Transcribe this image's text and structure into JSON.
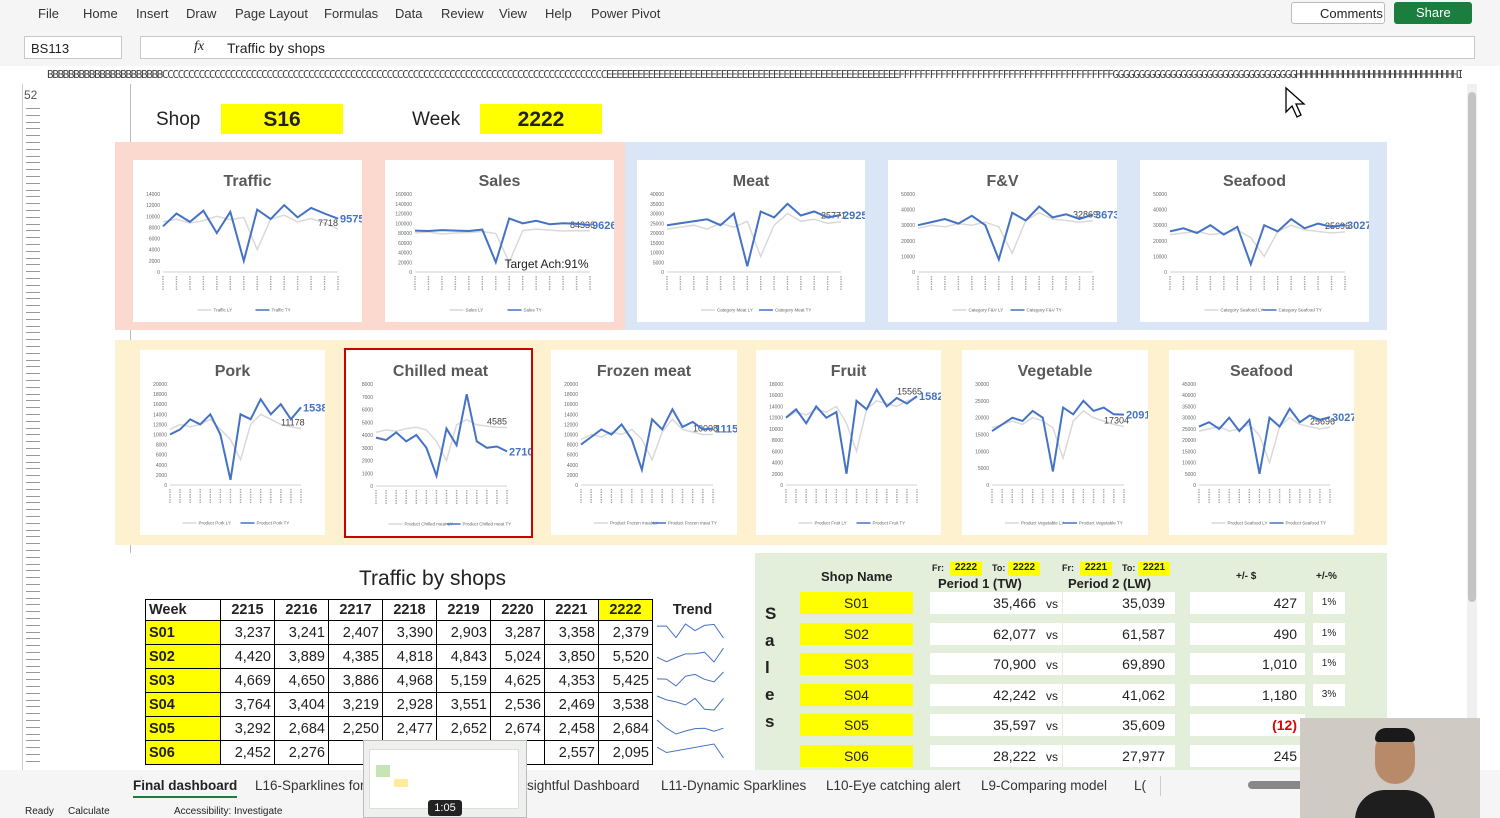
{
  "ribbon": {
    "menu": [
      "File",
      "Home",
      "Insert",
      "Draw",
      "Page Layout",
      "Formulas",
      "Data",
      "Review",
      "View",
      "Help",
      "Power Pivot"
    ],
    "comments": "Comments",
    "share": "Share"
  },
  "formula_bar": {
    "name_box": "BS113",
    "fx": "fx",
    "formula": "Traffic by shops"
  },
  "column_letters": "BBBBBBBBBBBBBBBBBBBBBBCCCCCCCCCCCCCCCCCCCCCCCCCCCCCCCCCCCCCCCCCCCCCCCCCCCCCCCCCCCCCCCCCCCCCCCCCCCCCCCCCCCCCEEEEEEEEEEEEEEEEEEEEEEEEEEEEEEEEEEEEEEEEEEEEEEEEEEEEEEEEFFFFFFFFFFFFFFFFFFFFFFFFFFFFFFFFFFFFFFFFFGGGGGGGGGGGGGGGGGGGGGGGGGGGGGGGGGGGHHHHHHHHHHHHHHHHHHHHHHHHHHHHHHHIIIIIIIIIIIIIIIIIII",
  "row_number": "52",
  "selectors": {
    "shop_label": "Shop",
    "shop": "S16",
    "week_label": "Week",
    "week": "2222"
  },
  "chart_data": [
    {
      "type": "line",
      "title": "Traffic",
      "ylim": [
        0,
        14000
      ],
      "yticks": [
        0,
        2000,
        4000,
        6000,
        8000,
        10000,
        12000,
        14000
      ],
      "series": [
        {
          "name": "Traffic LY",
          "color": "#d9d9d9",
          "values": [
            9000,
            9500,
            8800,
            9200,
            10000,
            9400,
            9800,
            4000,
            9500,
            10200,
            9000,
            9600,
            8800,
            7718
          ]
        },
        {
          "name": "Traffic TY",
          "color": "#4472c4",
          "values": [
            8200,
            10500,
            9000,
            11000,
            7000,
            10800,
            2000,
            11200,
            9500,
            12000,
            9800,
            11500,
            10500,
            9575
          ]
        }
      ]
    },
    {
      "type": "line",
      "title": "Sales",
      "annotation": "Target Ach:91%",
      "ylim": [
        0,
        160000
      ],
      "yticks": [
        0,
        20000,
        40000,
        60000,
        80000,
        100000,
        120000,
        140000,
        160000
      ],
      "series": [
        {
          "name": "Sales LY",
          "color": "#d9d9d9",
          "values": [
            80000,
            82000,
            78000,
            80000,
            81000,
            83000,
            79000,
            20000,
            85000,
            88000,
            86000,
            84000,
            85000,
            84336
          ]
        },
        {
          "name": "Sales TY",
          "color": "#4472c4",
          "values": [
            85000,
            84000,
            86000,
            85000,
            84000,
            87000,
            20000,
            110000,
            100000,
            105000,
            98000,
            100000,
            99000,
            96260
          ]
        }
      ]
    },
    {
      "type": "line",
      "title": "Meat",
      "ylim": [
        0,
        40000
      ],
      "yticks": [
        0,
        5000,
        10000,
        15000,
        20000,
        25000,
        30000,
        35000,
        40000
      ],
      "series": [
        {
          "name": "Category Meat LY",
          "color": "#d9d9d9",
          "values": [
            22000,
            23000,
            24000,
            22000,
            25000,
            23000,
            26000,
            8000,
            24000,
            30000,
            26000,
            27000,
            25000,
            25771
          ]
        },
        {
          "name": "Category Meat TY",
          "color": "#4472c4",
          "values": [
            24000,
            25000,
            26000,
            27000,
            24000,
            30000,
            3000,
            31000,
            28000,
            35000,
            29000,
            31000,
            28000,
            29251
          ]
        }
      ]
    },
    {
      "type": "line",
      "title": "F&V",
      "ylim": [
        0,
        50000
      ],
      "yticks": [
        0,
        10000,
        20000,
        30000,
        40000,
        50000
      ],
      "series": [
        {
          "name": "Category F&V LY",
          "color": "#d9d9d9",
          "values": [
            28000,
            30000,
            29000,
            31000,
            30000,
            32000,
            29000,
            12000,
            33000,
            38000,
            34000,
            33000,
            32000,
            32869
          ]
        },
        {
          "name": "Category F&V TY",
          "color": "#4472c4",
          "values": [
            30000,
            32000,
            34000,
            31000,
            36000,
            30000,
            8000,
            38000,
            33000,
            42000,
            35000,
            37000,
            34000,
            36735
          ]
        }
      ]
    },
    {
      "type": "line",
      "title": "Seafood",
      "ylim": [
        0,
        50000
      ],
      "yticks": [
        0,
        10000,
        20000,
        30000,
        40000,
        50000
      ],
      "series": [
        {
          "name": "Category Seafood LY",
          "color": "#d9d9d9",
          "values": [
            24000,
            25000,
            26000,
            24000,
            25000,
            27000,
            22000,
            10000,
            26000,
            30000,
            27000,
            26000,
            25000,
            25696
          ]
        },
        {
          "name": "Category Seafood TY",
          "color": "#4472c4",
          "values": [
            26000,
            28000,
            25000,
            30000,
            24000,
            29000,
            5000,
            30000,
            26000,
            34000,
            28000,
            31000,
            29000,
            30274
          ]
        }
      ]
    },
    {
      "type": "line",
      "title": "Pork",
      "ylim": [
        0,
        20000
      ],
      "yticks": [
        0,
        2000,
        4000,
        6000,
        8000,
        10000,
        12000,
        14000,
        16000,
        18000,
        20000
      ],
      "series": [
        {
          "name": "Product Pork LY",
          "color": "#d9d9d9",
          "values": [
            11000,
            12000,
            11500,
            12000,
            13000,
            11000,
            9000,
            5000,
            12000,
            14000,
            13000,
            12000,
            11500,
            11178
          ]
        },
        {
          "name": "Product Pork TY",
          "color": "#4472c4",
          "values": [
            10000,
            11000,
            13000,
            12000,
            14000,
            10000,
            1000,
            14000,
            13000,
            17000,
            14000,
            16000,
            13000,
            15382
          ]
        }
      ]
    },
    {
      "type": "line",
      "title": "Chilled meat",
      "ylim": [
        0,
        8000
      ],
      "yticks": [
        0,
        1000,
        2000,
        3000,
        4000,
        5000,
        6000,
        7000,
        8000
      ],
      "series": [
        {
          "name": "Product Chilled meat LY",
          "color": "#d9d9d9",
          "values": [
            4200,
            4400,
            4300,
            4500,
            4600,
            4400,
            3500,
            2000,
            4800,
            5200,
            4800,
            4700,
            4600,
            4585
          ]
        },
        {
          "name": "Product Chilled meat TY",
          "color": "#4472c4",
          "values": [
            3800,
            3600,
            4200,
            3500,
            4000,
            3000,
            800,
            4500,
            3200,
            7200,
            3500,
            3000,
            3100,
            2710
          ]
        }
      ]
    },
    {
      "type": "line",
      "title": "Frozen meat",
      "ylim": [
        0,
        20000
      ],
      "yticks": [
        0,
        2000,
        4000,
        6000,
        8000,
        10000,
        12000,
        14000,
        16000,
        18000,
        20000
      ],
      "series": [
        {
          "name": "Product Frozen meat LY",
          "color": "#d9d9d9",
          "values": [
            9000,
            10000,
            9500,
            10500,
            10000,
            11000,
            9000,
            5000,
            10500,
            13000,
            11000,
            10500,
            10000,
            10008
          ]
        },
        {
          "name": "Product Frozen meat TY",
          "color": "#4472c4",
          "values": [
            8000,
            9500,
            11000,
            10000,
            12000,
            9000,
            3000,
            13000,
            11000,
            15000,
            11500,
            12500,
            11000,
            11159
          ]
        }
      ]
    },
    {
      "type": "line",
      "title": "Fruit",
      "ylim": [
        0,
        18000
      ],
      "yticks": [
        0,
        2000,
        4000,
        6000,
        8000,
        10000,
        12000,
        14000,
        16000,
        18000
      ],
      "series": [
        {
          "name": "Product Fruit LY",
          "color": "#d9d9d9",
          "values": [
            12000,
            13000,
            12500,
            13500,
            13000,
            14000,
            11000,
            6000,
            13500,
            15000,
            14500,
            14000,
            15000,
            15565
          ]
        },
        {
          "name": "Product Fruit TY",
          "color": "#4472c4",
          "values": [
            12000,
            13500,
            11000,
            14000,
            12000,
            13000,
            2000,
            15000,
            13500,
            17000,
            14000,
            15500,
            14500,
            15822
          ]
        }
      ]
    },
    {
      "type": "line",
      "title": "Vegetable",
      "ylim": [
        0,
        30000
      ],
      "yticks": [
        0,
        5000,
        10000,
        15000,
        20000,
        25000,
        30000
      ],
      "series": [
        {
          "name": "Product Vegetable LY",
          "color": "#d9d9d9",
          "values": [
            17000,
            18000,
            19000,
            18000,
            20000,
            19000,
            17000,
            8000,
            19000,
            22000,
            20000,
            19000,
            18000,
            17304
          ]
        },
        {
          "name": "Product Vegetable TY",
          "color": "#4472c4",
          "values": [
            16000,
            18000,
            20000,
            19000,
            22000,
            20000,
            4000,
            23000,
            21000,
            25000,
            22000,
            23000,
            21000,
            20913
          ]
        }
      ]
    },
    {
      "type": "line",
      "title": "Seafood",
      "ylim": [
        0,
        45000
      ],
      "yticks": [
        0,
        5000,
        10000,
        15000,
        20000,
        25000,
        30000,
        35000,
        40000,
        45000
      ],
      "series": [
        {
          "name": "Product Seafood LY",
          "color": "#d9d9d9",
          "values": [
            24000,
            25000,
            26000,
            24000,
            25000,
            27000,
            22000,
            10000,
            26000,
            30000,
            27000,
            26000,
            25000,
            25696
          ]
        },
        {
          "name": "Product Seafood TY",
          "color": "#4472c4",
          "values": [
            26000,
            28000,
            25000,
            30000,
            24000,
            29000,
            5000,
            30000,
            26000,
            34000,
            28000,
            31000,
            29000,
            30274
          ]
        }
      ]
    }
  ],
  "traffic_table": {
    "title": "Traffic by shops",
    "header": [
      "Week",
      "2215",
      "2216",
      "2217",
      "2218",
      "2219",
      "2220",
      "2221",
      "2222",
      "Trend"
    ],
    "rows": [
      [
        "S01",
        "3,237",
        "3,241",
        "2,407",
        "3,390",
        "2,903",
        "3,287",
        "3,358",
        "2,379"
      ],
      [
        "S02",
        "4,420",
        "3,889",
        "4,385",
        "4,818",
        "4,843",
        "5,024",
        "3,850",
        "5,520"
      ],
      [
        "S03",
        "4,669",
        "4,650",
        "3,886",
        "4,968",
        "5,159",
        "4,625",
        "4,353",
        "5,425"
      ],
      [
        "S04",
        "3,764",
        "3,404",
        "3,219",
        "2,928",
        "3,551",
        "2,536",
        "2,469",
        "3,538"
      ],
      [
        "S05",
        "3,292",
        "2,684",
        "2,250",
        "2,477",
        "2,652",
        "2,674",
        "2,458",
        "2,684"
      ],
      [
        "S06",
        "2,452",
        "2,276",
        null,
        null,
        null,
        null,
        "2,557",
        "2,095"
      ]
    ]
  },
  "sales_panel": {
    "vertical_label": [
      "S",
      "a",
      "l",
      "e",
      "s"
    ],
    "shop_name_header": "Shop Name",
    "period1": {
      "fr_label": "Fr:",
      "fr": "2222",
      "to_label": "To:",
      "to": "2222",
      "title": "Period 1 (TW)"
    },
    "period2": {
      "fr_label": "Fr:",
      "fr": "2221",
      "to_label": "To:",
      "to": "2221",
      "title": "Period 2 (LW)"
    },
    "diff_header": "+/- $",
    "pct_header": "+/-%",
    "vs": "vs",
    "rows": [
      {
        "shop": "S01",
        "p1": "35,466",
        "p2": "35,039",
        "diff": "427",
        "pct": "1%"
      },
      {
        "shop": "S02",
        "p1": "62,077",
        "p2": "61,587",
        "diff": "490",
        "pct": "1%"
      },
      {
        "shop": "S03",
        "p1": "70,900",
        "p2": "69,890",
        "diff": "1,010",
        "pct": "1%"
      },
      {
        "shop": "S04",
        "p1": "42,242",
        "p2": "41,062",
        "diff": "1,180",
        "pct": "3%"
      },
      {
        "shop": "S05",
        "p1": "35,597",
        "p2": "35,609",
        "diff": "(12)"
      },
      {
        "shop": "S06",
        "p1": "28,222",
        "p2": "27,977",
        "diff": "245"
      }
    ]
  },
  "sheet_tabs": [
    "Final dashboard",
    "L16-Sparklines for",
    "sightful Dashboard",
    "L11-Dynamic Sparklines",
    "L10-Eye catching alert",
    "L9-Comparing model",
    "L("
  ],
  "status": {
    "ready": "Ready",
    "calculate": "Calculate",
    "accessibility": "Accessibility: Investigate"
  },
  "video": {
    "time": "1:05"
  }
}
